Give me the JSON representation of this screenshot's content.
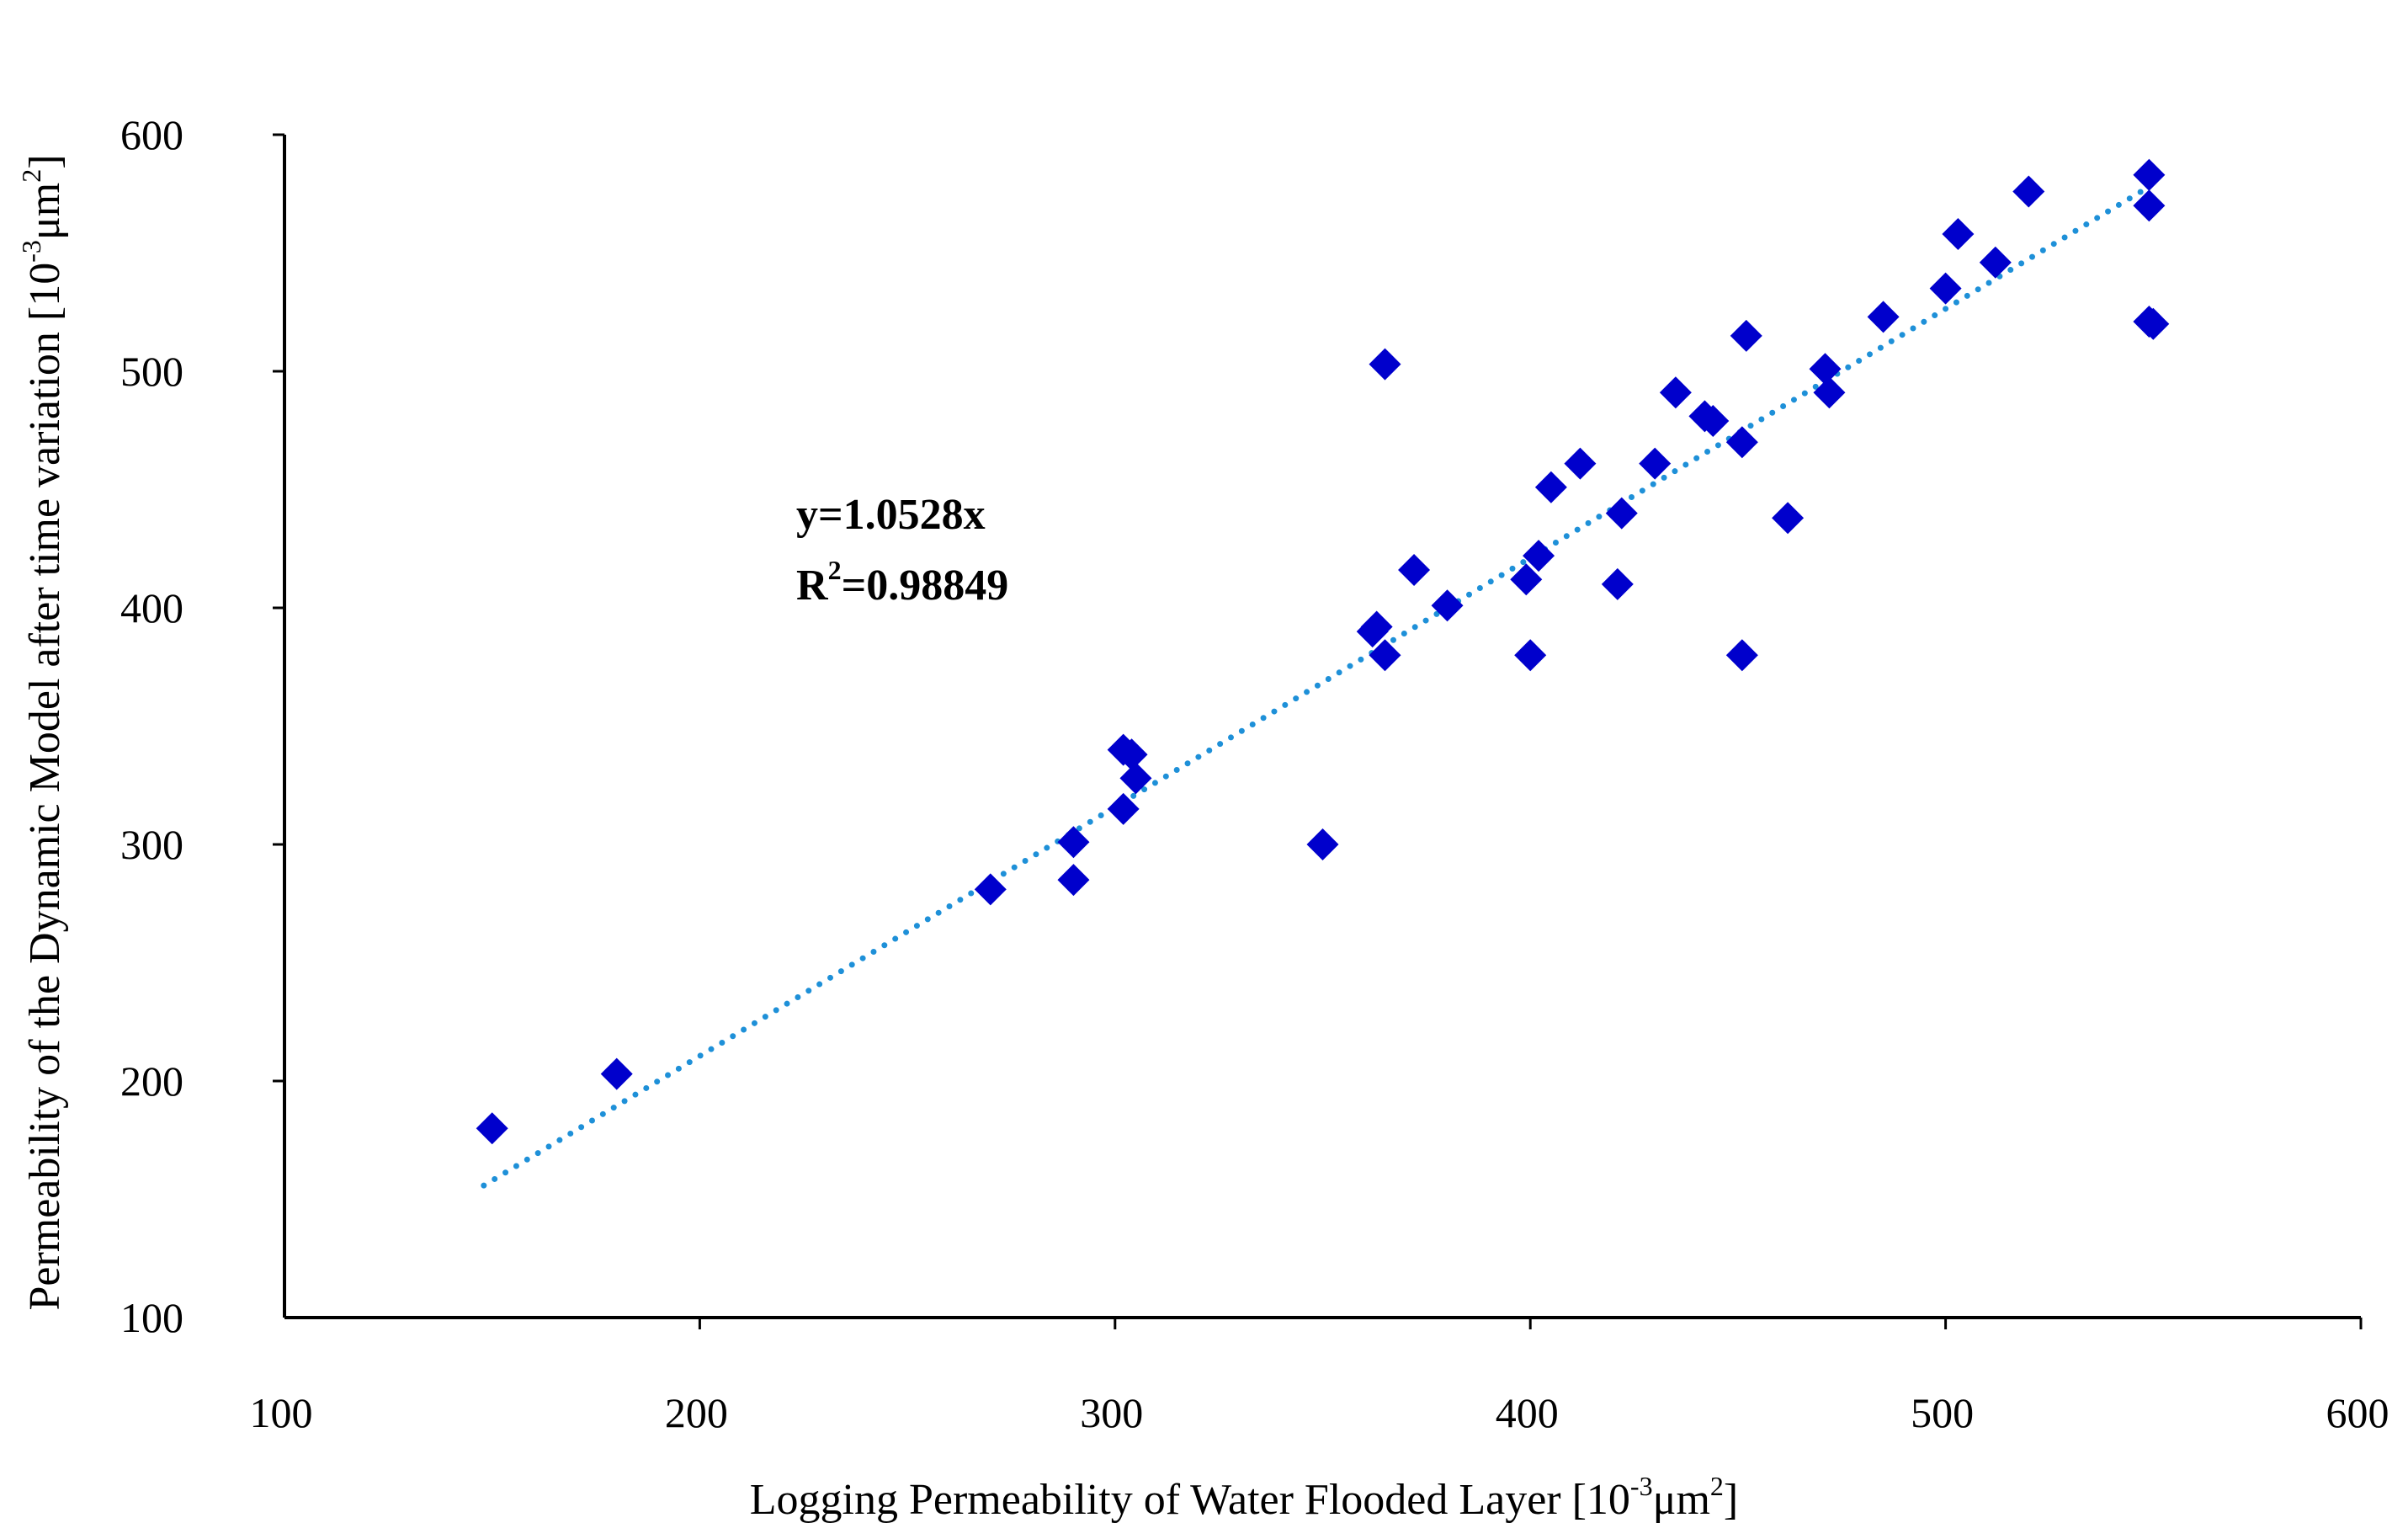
{
  "chart_data": {
    "type": "scatter",
    "title": "",
    "xlabel": "Logging Permeability of Water Flooded Layer",
    "xlabel_unit": "[10⁻³μm²]",
    "ylabel": "Permeability of the Dynamic Model after time variation",
    "ylabel_unit": "[10⁻³μm²]",
    "xlim": [
      100,
      600
    ],
    "ylim": [
      100,
      600
    ],
    "xticks": [
      100,
      200,
      300,
      400,
      500,
      600
    ],
    "yticks": [
      100,
      200,
      300,
      400,
      500,
      600
    ],
    "grid": false,
    "marker": "diamond",
    "marker_color": "#0000CC",
    "trendline_color": "#1E90D8",
    "series": [
      {
        "name": "data",
        "points": [
          [
            150,
            180
          ],
          [
            180,
            203
          ],
          [
            270,
            281
          ],
          [
            290,
            285
          ],
          [
            290,
            301
          ],
          [
            302,
            340
          ],
          [
            304,
            338
          ],
          [
            302,
            315
          ],
          [
            305,
            328
          ],
          [
            350,
            300
          ],
          [
            362,
            390
          ],
          [
            363,
            392
          ],
          [
            365,
            380
          ],
          [
            365,
            503
          ],
          [
            372,
            416
          ],
          [
            380,
            401
          ],
          [
            399,
            412
          ],
          [
            400,
            380
          ],
          [
            402,
            422
          ],
          [
            405,
            451
          ],
          [
            412,
            461
          ],
          [
            421,
            410
          ],
          [
            422,
            440
          ],
          [
            430,
            461
          ],
          [
            435,
            491
          ],
          [
            442,
            481
          ],
          [
            444,
            479
          ],
          [
            451,
            470
          ],
          [
            452,
            515
          ],
          [
            451,
            380
          ],
          [
            462,
            438
          ],
          [
            471,
            501
          ],
          [
            472,
            491
          ],
          [
            485,
            523
          ],
          [
            500,
            535
          ],
          [
            503,
            558
          ],
          [
            512,
            546
          ],
          [
            520,
            576
          ],
          [
            549,
            583
          ],
          [
            549,
            570
          ],
          [
            549,
            521
          ],
          [
            550,
            520
          ]
        ]
      }
    ],
    "trendline": {
      "type": "linear-through-origin",
      "slope": 1.0528,
      "x_range": [
        148,
        549
      ],
      "equation_label": "y=1.0528x",
      "r2_label_prefix": "R",
      "r2_label_sup": "2",
      "r2_label_value": "=0.98849"
    }
  },
  "labels": {
    "x_title": "Logging Permeability of Water Flooded Layer",
    "x_unit_open": " [10",
    "x_unit_sup": "-3",
    "x_unit_mid": "μm",
    "x_unit_sup2": "2",
    "x_unit_close": "]",
    "y_title": "Permeability of the Dynamic Model after time variation",
    "y_unit_open": " [10",
    "y_unit_sup": "-3",
    "y_unit_mid": "μm",
    "y_unit_sup2": "2",
    "y_unit_close": "]"
  }
}
